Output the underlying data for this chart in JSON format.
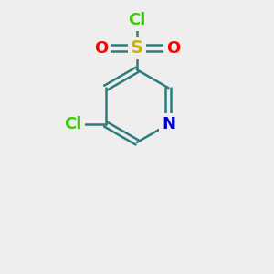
{
  "bg_color": "#eeeeee",
  "bond_color": "#2d7d7d",
  "bond_width": 1.8,
  "S_color": "#c8b400",
  "O_color": "#ff0000",
  "N_color": "#0000cc",
  "Cl_color": "#33cc00",
  "font_size_S": 14,
  "font_size_atoms": 13,
  "xlim": [
    0,
    1
  ],
  "ylim": [
    0,
    1
  ]
}
